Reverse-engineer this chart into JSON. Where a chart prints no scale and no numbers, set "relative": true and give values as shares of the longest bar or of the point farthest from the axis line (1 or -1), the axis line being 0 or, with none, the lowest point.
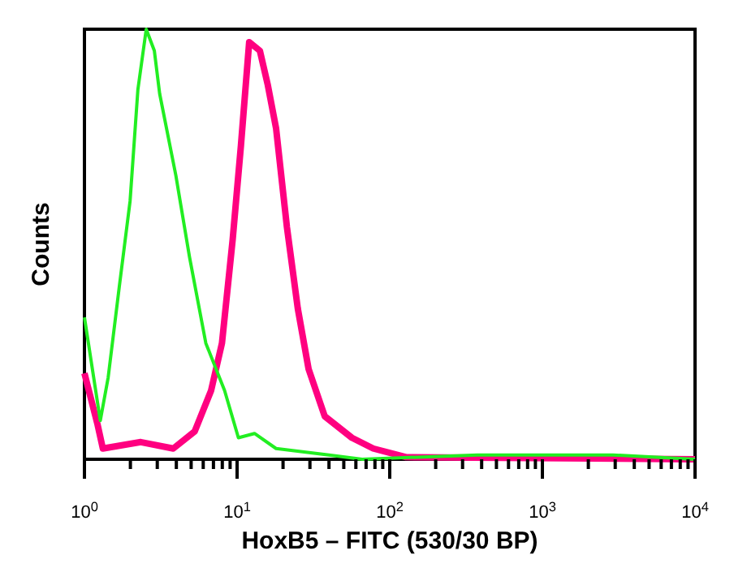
{
  "chart_data": {
    "type": "line",
    "relative": true,
    "log": "x",
    "xlabel": "HoxB5 – FITC (530/30 BP)",
    "ylabel": "Counts",
    "xlim": [
      1,
      10000
    ],
    "xticks": [
      {
        "value": 1,
        "label": "10$^{0}$"
      },
      {
        "value": 2,
        "label": null
      },
      {
        "value": 3,
        "label": null
      },
      {
        "value": 4,
        "label": null
      },
      {
        "value": 5,
        "label": null
      },
      {
        "value": 6,
        "label": null
      },
      {
        "value": 7,
        "label": null
      },
      {
        "value": 8,
        "label": null
      },
      {
        "value": 9,
        "label": null
      },
      {
        "value": 10,
        "label": "10$^{1}$"
      },
      {
        "value": 20,
        "label": null
      },
      {
        "value": 30,
        "label": null
      },
      {
        "value": 40,
        "label": null
      },
      {
        "value": 50,
        "label": null
      },
      {
        "value": 60,
        "label": null
      },
      {
        "value": 70,
        "label": null
      },
      {
        "value": 80,
        "label": null
      },
      {
        "value": 90,
        "label": null
      },
      {
        "value": 100,
        "label": "10$^{2}$"
      },
      {
        "value": 200,
        "label": null
      },
      {
        "value": 300,
        "label": null
      },
      {
        "value": 400,
        "label": null
      },
      {
        "value": 500,
        "label": null
      },
      {
        "value": 600,
        "label": null
      },
      {
        "value": 700,
        "label": null
      },
      {
        "value": 800,
        "label": null
      },
      {
        "value": 900,
        "label": null
      },
      {
        "value": 1000,
        "label": "10$^{3}$"
      },
      {
        "value": 2000,
        "label": null
      },
      {
        "value": 3000,
        "label": null
      },
      {
        "value": 4000,
        "label": null
      },
      {
        "value": 5000,
        "label": null
      },
      {
        "value": 6000,
        "label": null
      },
      {
        "value": 7000,
        "label": null
      },
      {
        "value": 8000,
        "label": null
      },
      {
        "value": 9000,
        "label": null
      },
      {
        "value": 10000,
        "label": "10$^{4}$"
      }
    ],
    "series": [
      {
        "color": "#22ee22",
        "x": [
          1,
          1.27,
          1.43,
          1.69,
          1.99,
          2.24,
          2.54,
          2.87,
          3.11,
          3.97,
          4.88,
          6.24,
          8.28,
          10.2,
          13,
          18,
          40,
          66,
          375,
          600,
          2900,
          10000
        ],
        "values": [
          0.33,
          0.09,
          0.19,
          0.4,
          0.6,
          0.86,
          1,
          0.95,
          0.85,
          0.66,
          0.47,
          0.27,
          0.16,
          0.05,
          0.06,
          0.025,
          0.01,
          0,
          0.01,
          0.01,
          0.01,
          0
        ]
      },
      {
        "color": "#ff0080",
        "x": [
          1,
          1.22,
          1.32,
          2.34,
          3.82,
          5.28,
          6.76,
          7.96,
          9.35,
          10.6,
          12,
          14.1,
          15.9,
          18,
          21.2,
          25,
          29.4,
          37.5,
          56.5,
          78,
          128,
          10000
        ],
        "values": [
          0.2,
          0.08,
          0.025,
          0.04,
          0.025,
          0.065,
          0.16,
          0.27,
          0.51,
          0.73,
          0.97,
          0.95,
          0.87,
          0.77,
          0.54,
          0.35,
          0.21,
          0.1,
          0.05,
          0.025,
          0.005,
          0
        ]
      }
    ]
  }
}
